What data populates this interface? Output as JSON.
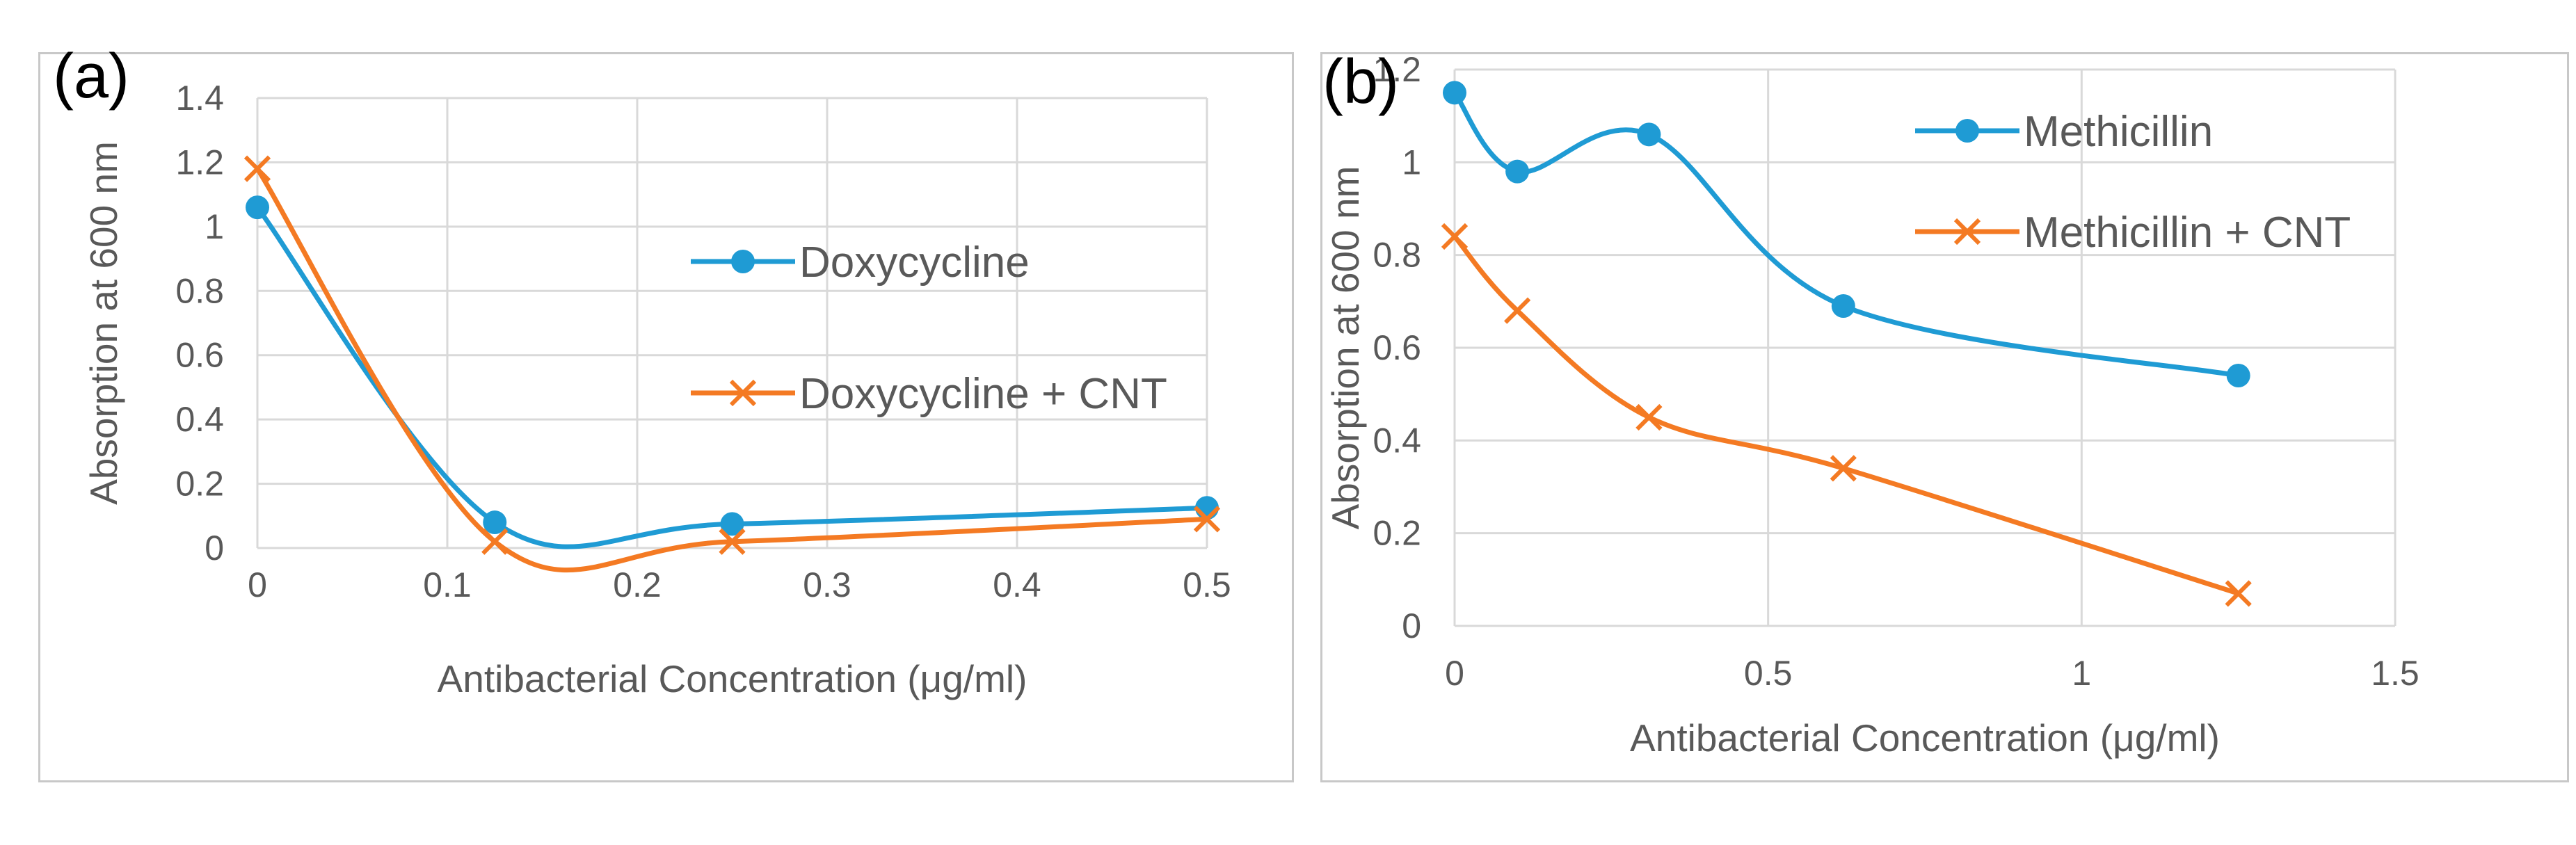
{
  "colors": {
    "blue": "#1f9bd4",
    "orange": "#f47a23",
    "grid": "#d9d9d9",
    "text": "#595959"
  },
  "chart_data": [
    {
      "panel_label": "(a)",
      "type": "line",
      "smooth": true,
      "xlabel": "Antibacterial Concentration (μg/ml)",
      "ylabel": "Absorption at 600 nm",
      "xlim": [
        0,
        0.5
      ],
      "ylim": [
        0,
        1.4
      ],
      "x_ticks": [
        "0",
        "0.1",
        "0.2",
        "0.3",
        "0.4",
        "0.5"
      ],
      "y_ticks": [
        "0",
        "0.2",
        "0.4",
        "0.6",
        "0.8",
        "1",
        "1.2",
        "1.4"
      ],
      "legend_position": "right",
      "series": [
        {
          "name": "Doxycycline",
          "marker": "circle",
          "color": "#1f9bd4",
          "x": [
            0,
            0.125,
            0.25,
            0.5
          ],
          "y": [
            1.06,
            0.08,
            0.075,
            0.125
          ]
        },
        {
          "name": "Doxycycline + CNT",
          "marker": "x",
          "color": "#f47a23",
          "x": [
            0,
            0.125,
            0.25,
            0.5
          ],
          "y": [
            1.18,
            0.02,
            0.02,
            0.09
          ]
        }
      ]
    },
    {
      "panel_label": "(b)",
      "type": "line",
      "smooth": true,
      "xlabel": "Antibacterial Concentration (μg/ml)",
      "ylabel": "Absorption at 600 nm",
      "xlim": [
        0,
        1.5
      ],
      "ylim": [
        0,
        1.2
      ],
      "x_ticks": [
        "0",
        "0.5",
        "1",
        "1.5"
      ],
      "y_ticks": [
        "0",
        "0.2",
        "0.4",
        "0.6",
        "0.8",
        "1",
        "1.2"
      ],
      "legend_position": "top-right",
      "series": [
        {
          "name": "Methicillin",
          "marker": "circle",
          "color": "#1f9bd4",
          "x": [
            0,
            0.1,
            0.31,
            0.62,
            1.25
          ],
          "y": [
            1.15,
            0.98,
            1.06,
            0.69,
            0.54
          ]
        },
        {
          "name": "Methicillin + CNT",
          "marker": "x",
          "color": "#f47a23",
          "x": [
            0,
            0.1,
            0.31,
            0.62,
            1.25
          ],
          "y": [
            0.84,
            0.68,
            0.45,
            0.34,
            0.07
          ]
        }
      ]
    }
  ]
}
